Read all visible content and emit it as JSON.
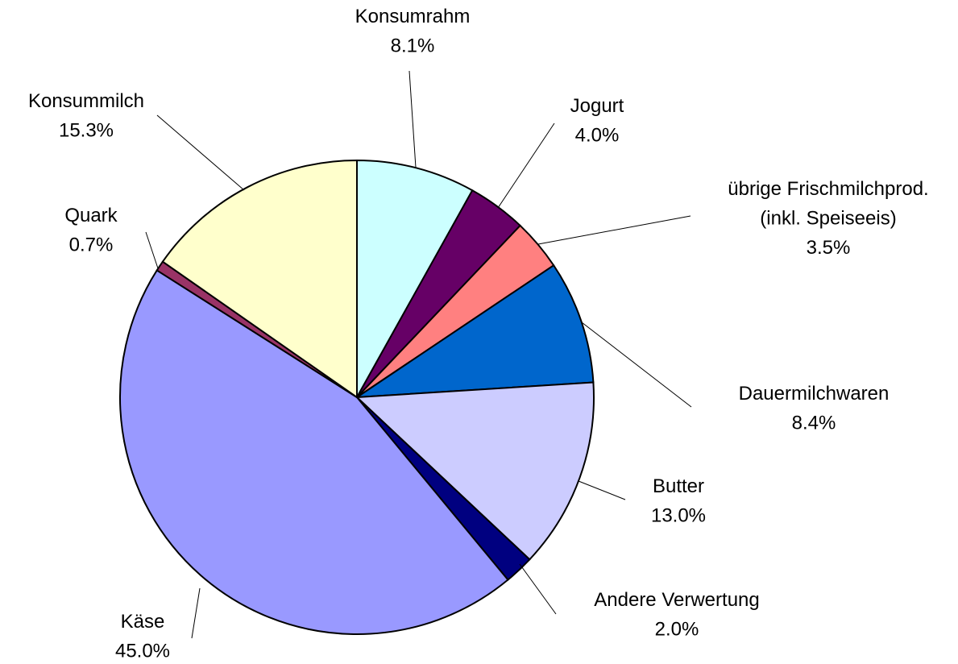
{
  "chart_data": {
    "type": "pie",
    "categories": [
      "Konsumrahm",
      "Jogurt",
      "übrige Frischmilchprod.\n(inkl. Speiseeis)",
      "Dauermilchwaren",
      "Butter",
      "Andere Verwertung",
      "Käse",
      "Quark",
      "Konsummilch"
    ],
    "values": [
      8.1,
      4.0,
      3.5,
      8.4,
      13.0,
      2.0,
      45.0,
      0.7,
      15.3
    ],
    "value_labels": [
      "8.1%",
      "4.0%",
      "3.5%",
      "8.4%",
      "13.0%",
      "2.0%",
      "45.0%",
      "0.7%",
      "15.3%"
    ],
    "colors": [
      "#ccffff",
      "#660066",
      "#ff8080",
      "#0066cc",
      "#ccccff",
      "#000080",
      "#9999ff",
      "#993366",
      "#ffffcc"
    ]
  }
}
